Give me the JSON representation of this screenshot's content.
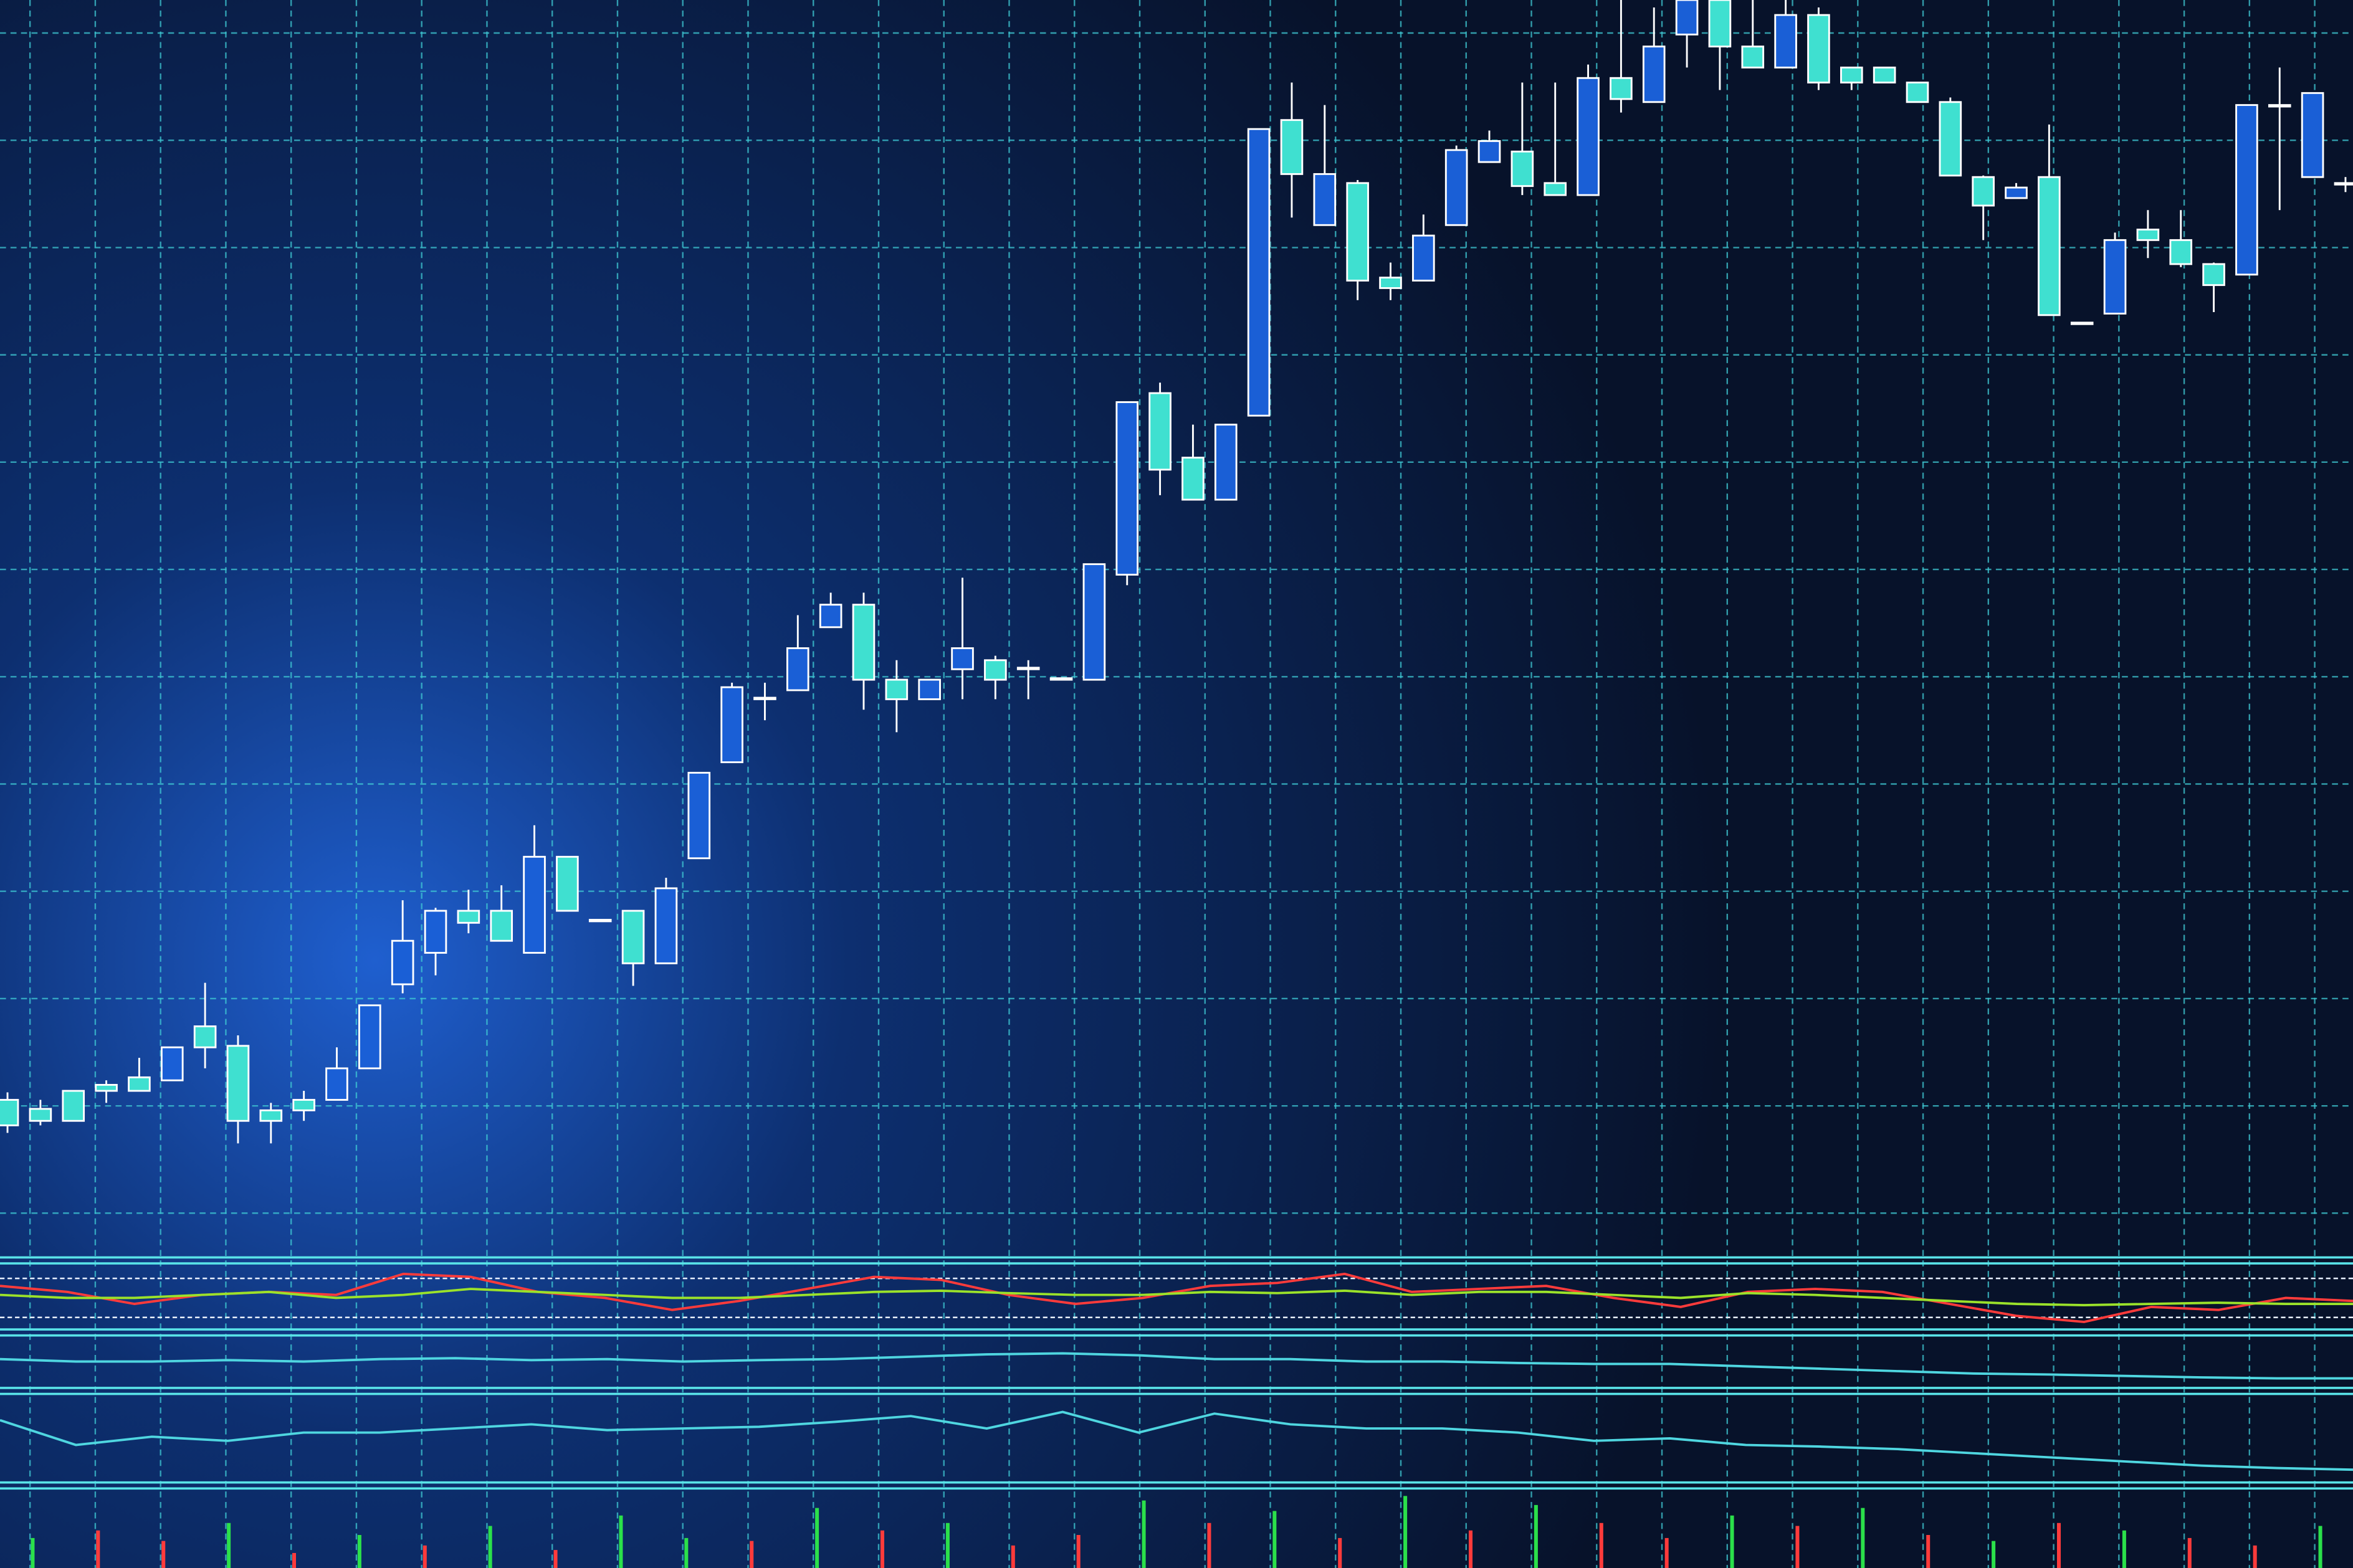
{
  "chart_data": [
    {
      "type": "candlestick",
      "ylim": [
        0,
        830
      ],
      "up_color": "#1a5fd6",
      "down_color": "#3fe0d0",
      "grid": true,
      "open": [
        97,
        91,
        103,
        107,
        112,
        110,
        146,
        133,
        90,
        97,
        97,
        118,
        174,
        195,
        223,
        223,
        195,
        259,
        217,
        223,
        188,
        258,
        322,
        365,
        370,
        412,
        427,
        377,
        364,
        384,
        390,
        385,
        378,
        377,
        447,
        568,
        525,
        497,
        553,
        750,
        680,
        708,
        645,
        643,
        680,
        722,
        729,
        708,
        700,
        778,
        762,
        807,
        830,
        799,
        785,
        820,
        785,
        785,
        775,
        762,
        712,
        698,
        712,
        615,
        621,
        677,
        670,
        654,
        647,
        760,
        712,
        708
      ],
      "high": [
        102,
        97,
        103,
        110,
        125,
        132,
        175,
        140,
        95,
        103,
        132,
        160,
        230,
        225,
        237,
        240,
        280,
        259,
        217,
        223,
        245,
        315,
        375,
        375,
        420,
        435,
        435,
        390,
        377,
        445,
        393,
        390,
        378,
        454,
        562,
        575,
        547,
        547,
        744,
        775,
        760,
        710,
        655,
        687,
        733,
        743,
        775,
        775,
        787,
        830,
        825,
        830,
        830,
        830,
        830,
        825,
        785,
        785,
        775,
        765,
        713,
        708,
        747,
        615,
        675,
        690,
        690,
        655,
        760,
        785,
        768,
        712
      ],
      "low": [
        75,
        80,
        83,
        95,
        103,
        110,
        118,
        68,
        68,
        83,
        97,
        118,
        168,
        180,
        208,
        203,
        195,
        223,
        217,
        173,
        188,
        258,
        322,
        350,
        370,
        412,
        357,
        342,
        364,
        364,
        364,
        364,
        378,
        377,
        440,
        500,
        497,
        497,
        553,
        685,
        680,
        630,
        630,
        643,
        680,
        722,
        700,
        700,
        700,
        755,
        762,
        785,
        770,
        785,
        785,
        770,
        770,
        775,
        762,
        713,
        670,
        698,
        620,
        615,
        621,
        658,
        652,
        622,
        647,
        690,
        712,
        702
      ],
      "close": [
        80,
        83,
        83,
        103,
        103,
        132,
        132,
        83,
        83,
        90,
        118,
        160,
        203,
        223,
        215,
        203,
        259,
        223,
        217,
        188,
        238,
        315,
        372,
        365,
        398,
        427,
        377,
        364,
        377,
        398,
        377,
        385,
        378,
        454,
        562,
        517,
        497,
        547,
        744,
        714,
        714,
        643,
        638,
        673,
        730,
        736,
        706,
        700,
        778,
        764,
        799,
        830,
        799,
        785,
        820,
        775,
        775,
        775,
        762,
        713,
        693,
        705,
        620,
        615,
        670,
        670,
        654,
        640,
        760,
        760,
        768,
        708
      ]
    },
    {
      "type": "line",
      "ylim": [
        0,
        100
      ],
      "series": [
        {
          "color": "#ff3b3b",
          "values": [
            70,
            60,
            40,
            55,
            60,
            55,
            90,
            85,
            60,
            50,
            30,
            45,
            65,
            85,
            80,
            55,
            40,
            50,
            70,
            75,
            90,
            60,
            65,
            70,
            50,
            35,
            60,
            65,
            60,
            40,
            20,
            10,
            35,
            30,
            50,
            45
          ]
        },
        {
          "color": "#9be22a",
          "values": [
            55,
            50,
            50,
            55,
            60,
            50,
            55,
            65,
            60,
            55,
            50,
            50,
            55,
            60,
            62,
            58,
            55,
            55,
            60,
            58,
            62,
            55,
            60,
            60,
            55,
            50,
            58,
            55,
            50,
            45,
            40,
            38,
            40,
            42,
            40,
            40
          ]
        }
      ]
    },
    {
      "type": "line",
      "ylim": [
        0,
        100
      ],
      "series": [
        {
          "color": "#4fd6e0",
          "values": [
            60,
            55,
            55,
            58,
            55,
            60,
            62,
            58,
            60,
            55,
            58,
            60,
            65,
            70,
            72,
            68,
            60,
            60,
            55,
            55,
            52,
            50,
            50,
            45,
            40,
            35,
            30,
            28,
            25,
            22,
            20,
            20
          ]
        }
      ]
    },
    {
      "type": "line",
      "ylim": [
        0,
        100
      ],
      "series": [
        {
          "color": "#4fd6e0",
          "values": [
            70,
            40,
            50,
            45,
            55,
            55,
            60,
            65,
            58,
            60,
            62,
            68,
            75,
            60,
            80,
            55,
            78,
            65,
            60,
            60,
            55,
            45,
            48,
            40,
            38,
            35,
            30,
            25,
            20,
            15,
            12,
            10
          ]
        }
      ]
    },
    {
      "type": "bar",
      "ylim": [
        0,
        50
      ],
      "values": [
        20,
        25,
        18,
        30,
        10,
        22,
        15,
        28,
        12,
        35,
        20,
        18,
        40,
        25,
        30,
        15,
        22,
        45,
        30,
        38,
        20,
        48,
        25,
        42,
        30,
        20,
        35,
        28,
        40,
        22,
        18,
        30,
        25,
        20,
        15,
        28
      ],
      "colors": [
        "#2be04a",
        "#ff3b3b",
        "#ff3b3b",
        "#2be04a",
        "#ff3b3b",
        "#2be04a",
        "#ff3b3b",
        "#2be04a",
        "#ff3b3b",
        "#2be04a",
        "#2be04a",
        "#ff3b3b",
        "#2be04a",
        "#ff3b3b",
        "#2be04a",
        "#ff3b3b",
        "#ff3b3b",
        "#2be04a",
        "#ff3b3b",
        "#2be04a",
        "#ff3b3b",
        "#2be04a",
        "#ff3b3b",
        "#2be04a",
        "#ff3b3b",
        "#ff3b3b",
        "#2be04a",
        "#ff3b3b",
        "#2be04a",
        "#ff3b3b",
        "#2be04a",
        "#ff3b3b",
        "#2be04a",
        "#ff3b3b",
        "#ff3b3b",
        "#2be04a"
      ]
    }
  ]
}
